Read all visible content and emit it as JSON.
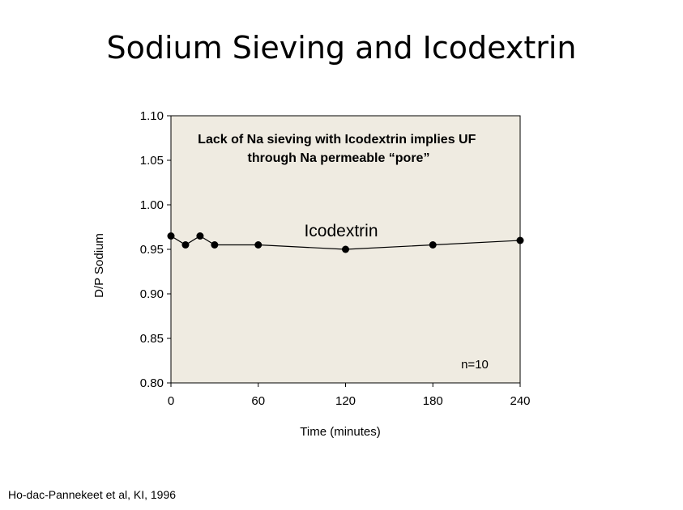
{
  "slide": {
    "title": "Sodium Sieving and Icodextrin",
    "citation": "Ho-dac-Pannekeet et al, KI, 1996"
  },
  "chart_data": {
    "type": "line",
    "annotation": "Lack of Na sieving with Icodextrin implies UF through Na permeable “pore”",
    "annotation_lines": [
      "Lack of Na sieving with Icodextrin implies UF",
      "through Na permeable “pore”"
    ],
    "series_label": "Icodextrin",
    "sample_size": "n=10",
    "xlabel": "Time (minutes)",
    "ylabel": "D/P Sodium",
    "xlim": [
      0,
      240
    ],
    "ylim": [
      0.8,
      1.1
    ],
    "xticks": [
      0,
      60,
      120,
      180,
      240
    ],
    "yticks": [
      0.8,
      0.85,
      0.9,
      0.95,
      1.0,
      1.05,
      1.1
    ],
    "xtick_labels": [
      "0",
      "60",
      "120",
      "180",
      "240"
    ],
    "ytick_labels": [
      "0.80",
      "0.85",
      "0.90",
      "0.95",
      "1.00",
      "1.05",
      "1.10"
    ],
    "grid": false,
    "plot_background": "#efebe1",
    "series": [
      {
        "x": [
          0,
          10,
          20,
          30,
          60,
          120,
          180,
          240
        ],
        "y": [
          0.965,
          0.955,
          0.965,
          0.955,
          0.955,
          0.95,
          0.955,
          0.96
        ]
      }
    ]
  }
}
